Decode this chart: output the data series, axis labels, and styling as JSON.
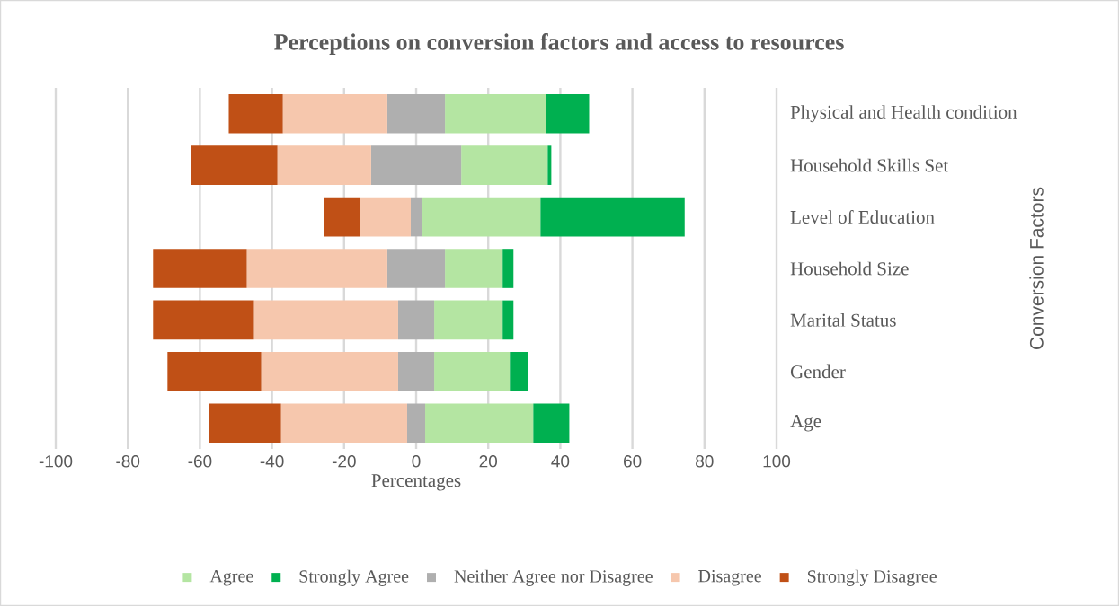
{
  "chart_data": {
    "type": "bar",
    "orientation": "horizontal",
    "title": "Perceptions on conversion factors and access to resources",
    "xlabel": "Percentages",
    "ylabel": "Conversion Factors",
    "categories": [
      "Physical and Health condition",
      "Household Skills Set",
      "Level of Education",
      "Household Size",
      "Marital Status",
      "Gender",
      "Age"
    ],
    "series": [
      {
        "name": "Agree",
        "color": "#b4e5a2",
        "values": [
          28,
          24,
          33,
          16,
          19,
          21,
          30
        ],
        "base": [
          8,
          12.5,
          1.5,
          8,
          5,
          5,
          2.5
        ]
      },
      {
        "name": "Strongly Agree",
        "color": "#00b050",
        "values": [
          12,
          1,
          40,
          3,
          3,
          5,
          10
        ],
        "base": [
          36,
          36.5,
          34.5,
          24,
          24,
          26,
          32.5
        ]
      },
      {
        "name": "Neither Agree nor Disagree",
        "color": "#afafaf",
        "values": [
          16,
          25,
          3,
          16,
          10,
          10,
          5
        ],
        "base": [
          -8,
          -12.5,
          -1.5,
          -8,
          -5,
          -5,
          -2.5
        ]
      },
      {
        "name": "Disagree",
        "color": "#f6c7ad",
        "values": [
          29,
          26,
          14,
          39,
          40,
          38,
          35
        ],
        "base": [
          -37,
          -38.5,
          -15.5,
          -47,
          -45,
          -43,
          -37.5
        ]
      },
      {
        "name": "Strongly Disagree",
        "color": "#c05016",
        "values": [
          15,
          24,
          10,
          26,
          28,
          26,
          20
        ],
        "base": [
          -52,
          -62.5,
          -25.5,
          -73,
          -73,
          -69,
          -57.5
        ]
      }
    ],
    "xlim": [
      -100,
      100
    ],
    "xticks": [
      -100,
      -80,
      -60,
      -40,
      -20,
      0,
      20,
      40,
      60,
      80,
      100
    ],
    "grid": "x",
    "legend": "bottom"
  }
}
